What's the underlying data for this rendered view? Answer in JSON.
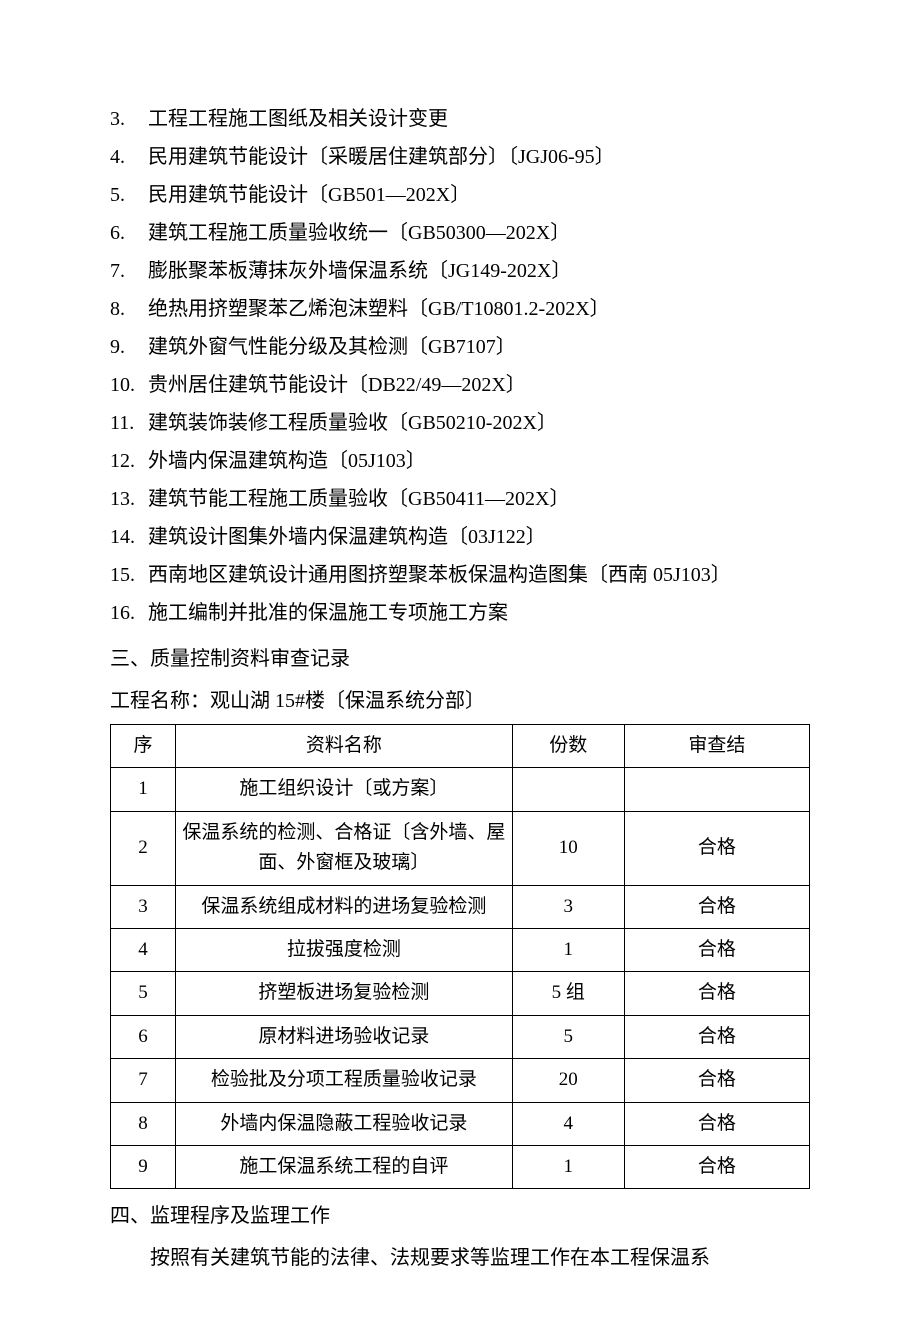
{
  "list": [
    {
      "num": "3.",
      "text": " 工程工程施工图纸及相关设计变更"
    },
    {
      "num": "4.",
      "text": "民用建筑节能设计〔采暖居住建筑部分〕〔JGJ06-95〕"
    },
    {
      "num": "5.",
      "text": "民用建筑节能设计〔GB501—202X〕"
    },
    {
      "num": "6.",
      "text": "建筑工程施工质量验收统一〔GB50300—202X〕"
    },
    {
      "num": "7.",
      "text": "膨胀聚苯板薄抹灰外墙保温系统〔JG149-202X〕"
    },
    {
      "num": "8.",
      "text": "绝热用挤塑聚苯乙烯泡沫塑料〔GB/T10801.2-202X〕"
    },
    {
      "num": "9.",
      "text": "建筑外窗气性能分级及其检测〔GB7107〕"
    },
    {
      "num": "10.",
      "text": "贵州居住建筑节能设计〔DB22/49—202X〕"
    },
    {
      "num": "11.",
      "text": "建筑装饰装修工程质量验收〔GB50210-202X〕"
    },
    {
      "num": "12.",
      "text": "外墙内保温建筑构造〔05J103〕"
    },
    {
      "num": "13.",
      "text": "建筑节能工程施工质量验收〔GB50411—202X〕"
    },
    {
      "num": "14.",
      "text": "建筑设计图集外墙内保温建筑构造〔03J122〕"
    },
    {
      "num": "15.",
      "text": "西南地区建筑设计通用图挤塑聚苯板保温构造图集〔西南 05J103〕"
    },
    {
      "num": "16.",
      "text": "施工编制并批准的保温施工专项施工方案"
    }
  ],
  "section3_title": "三、质量控制资料审查记录",
  "project_name": "工程名称：观山湖 15#楼〔保温系统分部〕",
  "table": {
    "headers": {
      "seq": "序",
      "name": "资料名称",
      "count": "份数",
      "result": "审查结"
    },
    "rows": [
      {
        "seq": "1",
        "name": "施工组织设计〔或方案〕",
        "count": "",
        "result": ""
      },
      {
        "seq": "2",
        "name": "保温系统的检测、合格证〔含外墙、屋面、外窗框及玻璃〕",
        "count": "10",
        "result": "合格"
      },
      {
        "seq": "3",
        "name": "保温系统组成材料的进场复验检测",
        "count": "3",
        "result": "合格"
      },
      {
        "seq": "4",
        "name": "拉拔强度检测",
        "count": "1",
        "result": "合格"
      },
      {
        "seq": "5",
        "name": "挤塑板进场复验检测",
        "count": "5 组",
        "result": "合格"
      },
      {
        "seq": "6",
        "name": "原材料进场验收记录",
        "count": "5",
        "result": "合格"
      },
      {
        "seq": "7",
        "name": "检验批及分项工程质量验收记录",
        "count": "20",
        "result": "合格"
      },
      {
        "seq": "8",
        "name": "外墙内保温隐蔽工程验收记录",
        "count": "4",
        "result": "合格"
      },
      {
        "seq": "9",
        "name": "施工保温系统工程的自评",
        "count": "1",
        "result": "合格"
      }
    ]
  },
  "section4_title": "四、监理程序及监理工作",
  "para4": "按照有关建筑节能的法律、法规要求等监理工作在本工程保温系"
}
